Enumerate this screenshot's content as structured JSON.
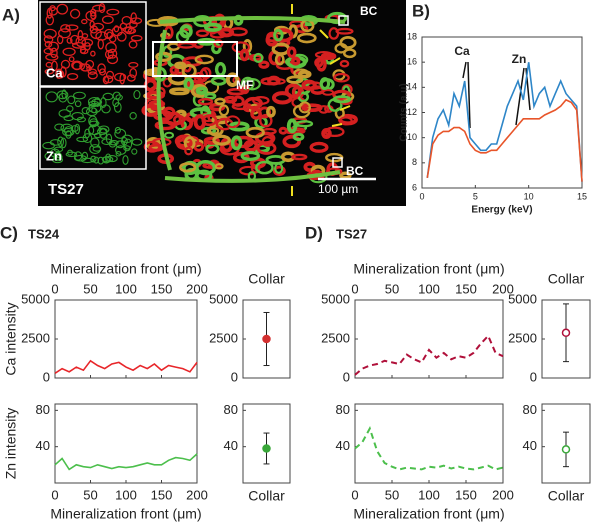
{
  "image_panel": {
    "label": "A)",
    "inset_ca": "Ca",
    "inset_zn": "Zn",
    "mf": "MF",
    "bc_top": "BC",
    "bc_bottom": "BC",
    "sample": "TS27",
    "scale": "100 µm"
  },
  "panels": {
    "b": "B)",
    "c": "C)",
    "d": "D)",
    "c_sample": "TS24",
    "d_sample": "TS27"
  },
  "chart_data": [
    {
      "type": "line",
      "xlabel": "Energy (keV)",
      "ylabel": "Counts (a.u)",
      "annotations": [
        "Ca",
        "Zn"
      ],
      "x": [
        0.5,
        1,
        1.5,
        2,
        2.5,
        3,
        3.5,
        4,
        4.5,
        5,
        5.5,
        6,
        6.5,
        7,
        7.5,
        8,
        8.5,
        9,
        9.5,
        10,
        10.5,
        11,
        11.5,
        12,
        12.5,
        13,
        13.5,
        14,
        14.5,
        15
      ],
      "series": [
        {
          "color": "#2e86c8",
          "values": [
            6.8,
            10,
            11.5,
            12.2,
            11,
            13.5,
            12.5,
            14.5,
            10,
            9.5,
            9,
            9,
            9.5,
            9.5,
            11,
            12.5,
            13.5,
            14.5,
            13,
            16,
            12.5,
            13.5,
            14,
            12.5,
            13.5,
            14.5,
            13.5,
            13,
            12.5,
            6.5
          ]
        },
        {
          "color": "#e8552a",
          "values": [
            6.8,
            9.5,
            10.2,
            10.5,
            10.5,
            10.8,
            10.8,
            10.5,
            9.5,
            9,
            8.8,
            8.8,
            9,
            9,
            9.5,
            10,
            10.5,
            11,
            11.5,
            11.5,
            11.5,
            11.5,
            11.8,
            12,
            12.2,
            12.5,
            13,
            12.8,
            12.2,
            6.5
          ]
        }
      ],
      "xlim": [
        0,
        15
      ],
      "xticks": [
        0,
        5,
        10,
        15
      ],
      "ylim": [
        6,
        18
      ],
      "yticks": [
        6,
        8,
        10,
        12,
        14,
        16,
        18
      ]
    },
    {
      "type": "line",
      "xlabel": "Mineralization front (μm)",
      "xaxis": "top",
      "ylabel": "Ca intensity",
      "color": "#e8262a",
      "linestyle": "solid",
      "x": [
        0,
        10,
        20,
        30,
        40,
        50,
        60,
        70,
        80,
        90,
        100,
        110,
        120,
        130,
        140,
        150,
        160,
        170,
        180,
        190,
        200
      ],
      "values": [
        300,
        600,
        400,
        700,
        500,
        1100,
        800,
        600,
        900,
        1000,
        700,
        500,
        800,
        600,
        900,
        500,
        800,
        700,
        600,
        400,
        1000
      ],
      "xlim": [
        0,
        200
      ],
      "xticks": [
        0,
        50,
        100,
        150,
        200
      ],
      "ylim": [
        0,
        5000
      ],
      "yticks": [
        0,
        2500,
        5000
      ]
    },
    {
      "type": "errorbar",
      "title": "Collar",
      "color": "#d43030",
      "filled": true,
      "values": [
        2500
      ],
      "errors": [
        1700
      ],
      "ylim": [
        0,
        5000
      ],
      "yticks": [
        0,
        2500,
        5000
      ]
    },
    {
      "type": "line",
      "xlabel": "Mineralization front (μm)",
      "xaxis": "bottom",
      "ylabel": "Zn intensity",
      "color": "#4cbf4c",
      "linestyle": "solid",
      "x": [
        0,
        10,
        20,
        30,
        40,
        50,
        60,
        70,
        80,
        90,
        100,
        110,
        120,
        130,
        140,
        150,
        160,
        170,
        180,
        190,
        200
      ],
      "values": [
        20,
        27,
        15,
        20,
        18,
        17,
        20,
        18,
        16,
        18,
        17,
        18,
        20,
        22,
        20,
        20,
        25,
        28,
        27,
        25,
        32
      ],
      "xlim": [
        0,
        200
      ],
      "xticks": [
        0,
        50,
        100,
        150,
        200
      ],
      "ylim": [
        0,
        87
      ],
      "yticks": [
        40,
        80
      ]
    },
    {
      "type": "errorbar",
      "xlabel": "Collar",
      "color": "#3aa83a",
      "filled": true,
      "values": [
        38
      ],
      "errors": [
        17
      ],
      "ylim": [
        0,
        87
      ],
      "yticks": [
        40,
        80
      ]
    },
    {
      "type": "line",
      "xlabel": "Mineralization front (μm)",
      "xaxis": "top",
      "color": "#b0103a",
      "linestyle": "dashed",
      "x": [
        0,
        10,
        20,
        30,
        40,
        50,
        60,
        70,
        80,
        90,
        100,
        110,
        120,
        130,
        140,
        150,
        160,
        170,
        180,
        190,
        200
      ],
      "values": [
        200,
        600,
        800,
        900,
        1100,
        1000,
        900,
        1500,
        1200,
        1000,
        1800,
        1300,
        1600,
        1200,
        1400,
        1300,
        1600,
        2200,
        2700,
        1600,
        1400
      ],
      "xlim": [
        0,
        200
      ],
      "xticks": [
        0,
        50,
        100,
        150,
        200
      ],
      "ylim": [
        0,
        5000
      ],
      "yticks": [
        0,
        2500,
        5000
      ]
    },
    {
      "type": "errorbar",
      "title": "Collar",
      "color": "#b0103a",
      "filled": false,
      "values": [
        2900
      ],
      "errors": [
        1850
      ],
      "ylim": [
        0,
        5000
      ],
      "yticks": [
        0,
        2500,
        5000
      ]
    },
    {
      "type": "line",
      "xlabel": "Mineralization front (μm)",
      "xaxis": "bottom",
      "color": "#4cbf4c",
      "linestyle": "dashed",
      "x": [
        0,
        10,
        20,
        30,
        40,
        50,
        60,
        70,
        80,
        90,
        100,
        110,
        120,
        130,
        140,
        150,
        160,
        170,
        180,
        190,
        200
      ],
      "values": [
        38,
        45,
        60,
        35,
        22,
        18,
        15,
        17,
        16,
        15,
        18,
        17,
        19,
        16,
        18,
        16,
        15,
        17,
        19,
        15,
        17
      ],
      "xlim": [
        0,
        200
      ],
      "xticks": [
        0,
        50,
        100,
        150,
        200
      ],
      "ylim": [
        0,
        87
      ],
      "yticks": [
        40,
        80
      ]
    },
    {
      "type": "errorbar",
      "xlabel": "Collar",
      "color": "#3aa83a",
      "filled": false,
      "values": [
        37
      ],
      "errors": [
        19
      ],
      "ylim": [
        0,
        87
      ],
      "yticks": [
        40,
        80
      ]
    }
  ]
}
